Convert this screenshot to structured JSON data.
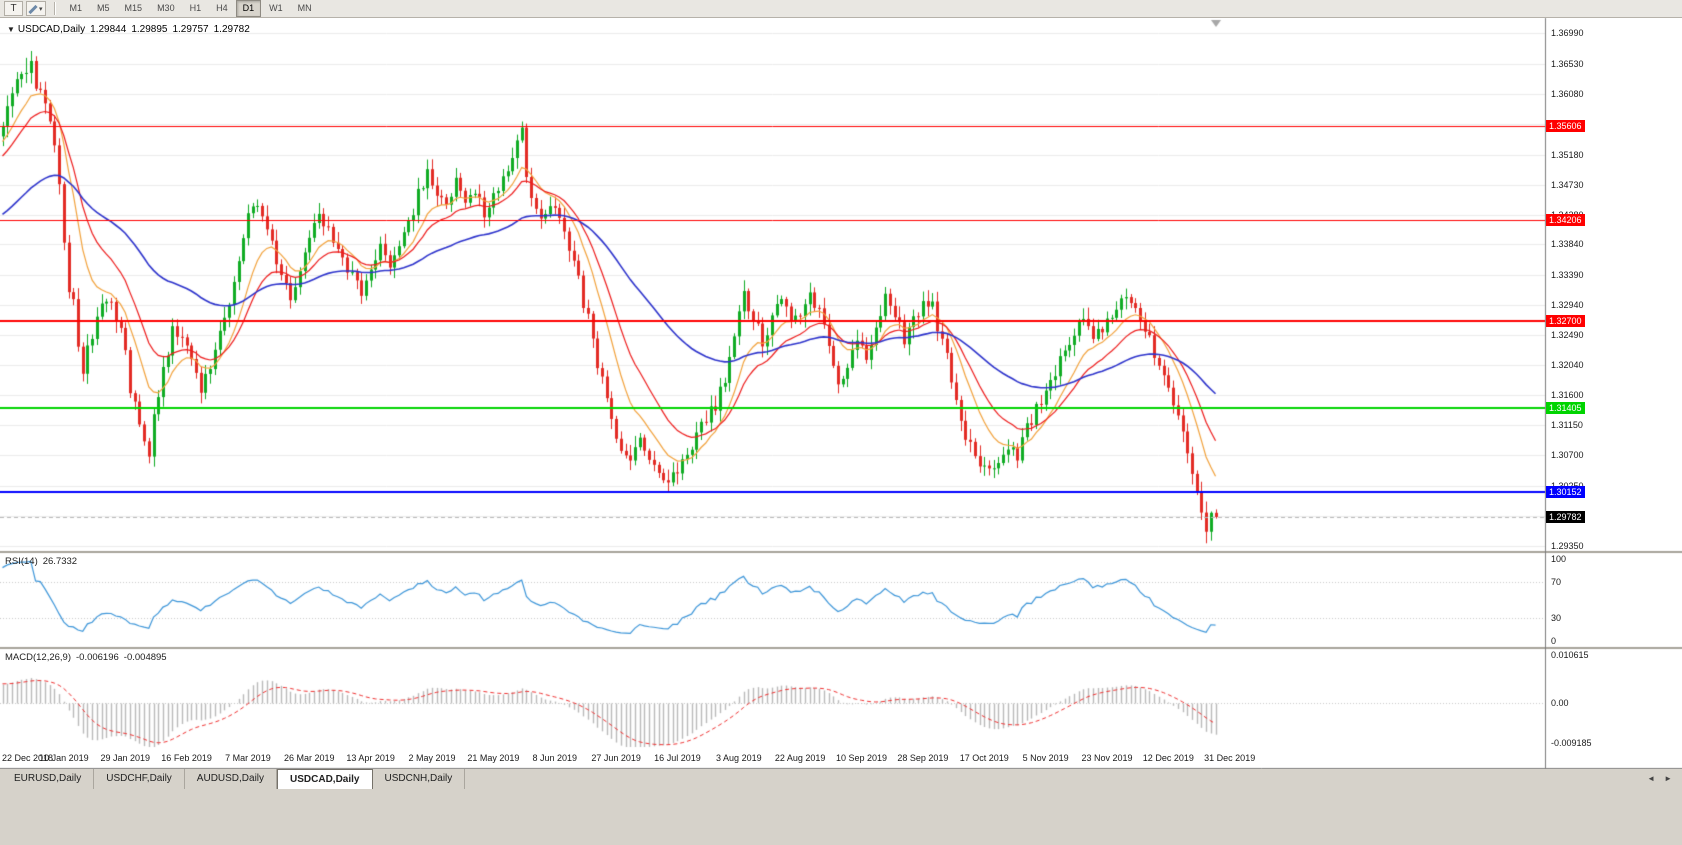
{
  "toolbar": {
    "template_button_label": "T",
    "dropdown_icon": "▾",
    "timeframes": [
      "M1",
      "M5",
      "M15",
      "M30",
      "H1",
      "H4",
      "D1",
      "W1",
      "MN"
    ],
    "active_timeframe": "D1"
  },
  "title": {
    "collapse_icon": "▼",
    "symbol_period": "USDCAD,Daily"
  },
  "tabs": {
    "items": [
      "EURUSD,Daily",
      "USDCHF,Daily",
      "AUDUSD,Daily",
      "USDCAD,Daily",
      "USDCNH,Daily"
    ],
    "active": "USDCAD,Daily",
    "scroll_left_icon": "◄",
    "scroll_right_icon": "►"
  },
  "chart_data": {
    "type": "candlestick",
    "symbol": "USDCAD",
    "timeframe": "Daily",
    "last_bar": {
      "open": "1.29844",
      "high": "1.29895",
      "low": "1.29757",
      "close": "1.29782"
    },
    "bars_visible": 258,
    "label_every_bars": 13,
    "candle_up_color": "#10ac24",
    "candle_down_color": "#e32b25",
    "price_axis_labels": [
      "1.36990",
      "1.36530",
      "1.36080",
      "1.35630",
      "1.35180",
      "1.34730",
      "1.34280",
      "1.33840",
      "1.33390",
      "1.32940",
      "1.32490",
      "1.32040",
      "1.31600",
      "1.31150",
      "1.30700",
      "1.30250",
      "1.29800",
      "1.29350"
    ],
    "date_axis_labels": [
      "22 Dec 2018",
      "10 Jan 2019",
      "29 Jan 2019",
      "16 Feb 2019",
      "7 Mar 2019",
      "26 Mar 2019",
      "13 Apr 2019",
      "2 May 2019",
      "21 May 2019",
      "8 Jun 2019",
      "27 Jun 2019",
      "16 Jul 2019",
      "3 Aug 2019",
      "22 Aug 2019",
      "10 Sep 2019",
      "28 Sep 2019",
      "17 Oct 2019",
      "5 Nov 2019",
      "23 Nov 2019",
      "12 Dec 2019",
      "31 Dec 2019"
    ],
    "levels": [
      {
        "label": "1.35606",
        "color": "#ff0000",
        "width": 1
      },
      {
        "label": "1.34206",
        "color": "#ff0000",
        "width": 1
      },
      {
        "label": "1.32700",
        "color": "#ff0000",
        "width": 2
      },
      {
        "label": "1.31405",
        "color": "#00d400",
        "width": 2
      },
      {
        "label": "1.30152",
        "color": "#0000ff",
        "width": 2
      }
    ],
    "current_price": {
      "label": "1.29782",
      "tag_bg": "#000000"
    },
    "moving_averages": [
      {
        "period": 10,
        "method": "ema",
        "color": "#f2a23c",
        "width": 1.2
      },
      {
        "period": 18,
        "method": "ema",
        "color": "#ee1c1c",
        "width": 1.2
      },
      {
        "period": 55,
        "method": "ema",
        "color": "#2e34cc",
        "width": 1.6
      }
    ],
    "rsi": {
      "name": "RSI(14)",
      "value": "26.7332",
      "period": 14,
      "color": "#3d96d9",
      "level_lines": [
        70,
        30
      ],
      "axis_labels": [
        "100",
        "70",
        "30",
        "0"
      ]
    },
    "macd": {
      "name": "MACD(12,26,9)",
      "main_value": "-0.006196",
      "signal_value": "-0.004895",
      "fast": 12,
      "slow": 26,
      "signal_period": 9,
      "histogram_color": "#b9b9b9",
      "signal_color": "#f03030",
      "axis_labels": [
        "0.010615",
        "0.00",
        "-0.009185"
      ]
    },
    "waypoints": [
      [
        -65,
        1.3235
      ],
      [
        -55,
        1.327
      ],
      [
        -45,
        1.331
      ],
      [
        -35,
        1.335
      ],
      [
        -25,
        1.3415
      ],
      [
        -15,
        1.348
      ],
      [
        -8,
        1.353
      ],
      [
        -3,
        1.3545
      ],
      [
        0,
        1.3555
      ],
      [
        3,
        1.3625
      ],
      [
        6,
        1.365
      ],
      [
        8,
        1.3605
      ],
      [
        10,
        1.3565
      ],
      [
        12,
        1.347
      ],
      [
        14,
        1.333
      ],
      [
        17,
        1.3195
      ],
      [
        19,
        1.325
      ],
      [
        22,
        1.3305
      ],
      [
        25,
        1.326
      ],
      [
        27,
        1.3175
      ],
      [
        29,
        1.3105
      ],
      [
        31,
        1.3078
      ],
      [
        33,
        1.316
      ],
      [
        36,
        1.3255
      ],
      [
        39,
        1.3235
      ],
      [
        42,
        1.317
      ],
      [
        45,
        1.3225
      ],
      [
        48,
        1.329
      ],
      [
        51,
        1.339
      ],
      [
        53,
        1.3445
      ],
      [
        55,
        1.3435
      ],
      [
        58,
        1.336
      ],
      [
        61,
        1.3295
      ],
      [
        63,
        1.3335
      ],
      [
        65,
        1.3385
      ],
      [
        67,
        1.343
      ],
      [
        70,
        1.3385
      ],
      [
        73,
        1.3345
      ],
      [
        76,
        1.331
      ],
      [
        78,
        1.3355
      ],
      [
        80,
        1.3385
      ],
      [
        82,
        1.3345
      ],
      [
        85,
        1.3395
      ],
      [
        88,
        1.346
      ],
      [
        90,
        1.3495
      ],
      [
        92,
        1.3465
      ],
      [
        94,
        1.344
      ],
      [
        96,
        1.348
      ],
      [
        98,
        1.344
      ],
      [
        100,
        1.3465
      ],
      [
        102,
        1.343
      ],
      [
        104,
        1.3455
      ],
      [
        106,
        1.3485
      ],
      [
        108,
        1.3515
      ],
      [
        110,
        1.355
      ],
      [
        112,
        1.3455
      ],
      [
        114,
        1.342
      ],
      [
        117,
        1.3445
      ],
      [
        119,
        1.3395
      ],
      [
        121,
        1.3355
      ],
      [
        123,
        1.3295
      ],
      [
        125,
        1.325
      ],
      [
        127,
        1.318
      ],
      [
        129,
        1.312
      ],
      [
        131,
        1.3085
      ],
      [
        133,
        1.306
      ],
      [
        135,
        1.309
      ],
      [
        137,
        1.3065
      ],
      [
        139,
        1.3045
      ],
      [
        141,
        1.3028
      ],
      [
        143,
        1.3045
      ],
      [
        145,
        1.307
      ],
      [
        147,
        1.3105
      ],
      [
        149,
        1.3125
      ],
      [
        151,
        1.3145
      ],
      [
        153,
        1.3185
      ],
      [
        155,
        1.3255
      ],
      [
        157,
        1.331
      ],
      [
        159,
        1.3275
      ],
      [
        161,
        1.3235
      ],
      [
        163,
        1.3275
      ],
      [
        165,
        1.3305
      ],
      [
        167,
        1.3265
      ],
      [
        169,
        1.3285
      ],
      [
        171,
        1.331
      ],
      [
        173,
        1.3285
      ],
      [
        175,
        1.3235
      ],
      [
        177,
        1.318
      ],
      [
        179,
        1.3205
      ],
      [
        181,
        1.3235
      ],
      [
        183,
        1.3215
      ],
      [
        185,
        1.326
      ],
      [
        187,
        1.3305
      ],
      [
        189,
        1.328
      ],
      [
        191,
        1.3235
      ],
      [
        193,
        1.327
      ],
      [
        195,
        1.3305
      ],
      [
        197,
        1.329
      ],
      [
        199,
        1.324
      ],
      [
        201,
        1.318
      ],
      [
        203,
        1.312
      ],
      [
        205,
        1.308
      ],
      [
        207,
        1.306
      ],
      [
        209,
        1.3045
      ],
      [
        211,
        1.306
      ],
      [
        213,
        1.3085
      ],
      [
        215,
        1.306
      ],
      [
        217,
        1.311
      ],
      [
        219,
        1.314
      ],
      [
        221,
        1.316
      ],
      [
        223,
        1.3195
      ],
      [
        225,
        1.323
      ],
      [
        227,
        1.3255
      ],
      [
        229,
        1.327
      ],
      [
        231,
        1.3245
      ],
      [
        234,
        1.327
      ],
      [
        236,
        1.3295
      ],
      [
        238,
        1.331
      ],
      [
        240,
        1.329
      ],
      [
        242,
        1.326
      ],
      [
        244,
        1.3225
      ],
      [
        247,
        1.317
      ],
      [
        249,
        1.3125
      ],
      [
        251,
        1.3075
      ],
      [
        253,
        1.302
      ],
      [
        255,
        1.2962
      ],
      [
        256,
        1.2984
      ],
      [
        257,
        1.2978
      ]
    ]
  }
}
